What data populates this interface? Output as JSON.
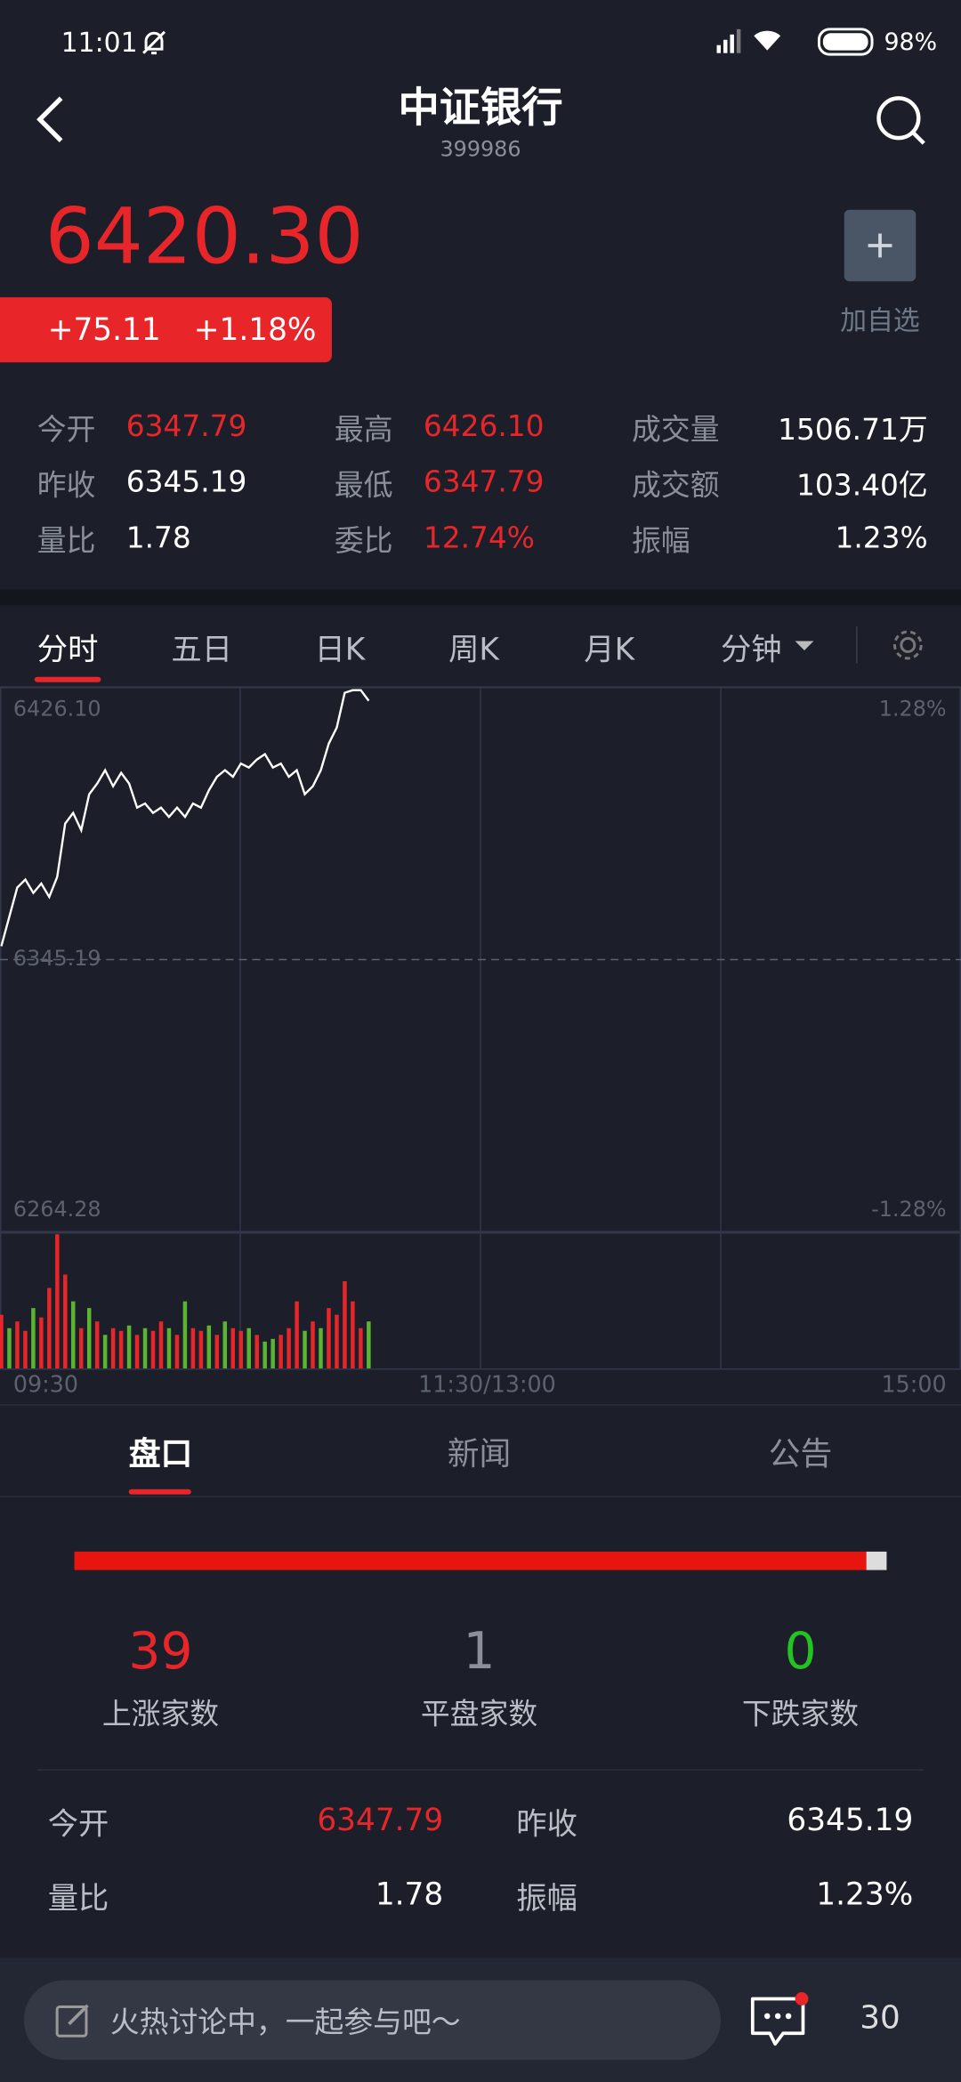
{
  "status_bar": {
    "time": "11:01",
    "battery": "98%"
  },
  "header": {
    "title": "中证银行",
    "code": "399986"
  },
  "quote": {
    "price": "6420.30",
    "change": "+75.11",
    "change_pct": "+1.18%",
    "watchlist": "加自选"
  },
  "stats": [
    [
      {
        "label": "今开",
        "value": "6347.79",
        "color": "#e8262a"
      },
      {
        "label": "最高",
        "value": "6426.10",
        "color": "#e8262a"
      },
      {
        "label": "成交量",
        "value": "1506.71万",
        "color": "#ffffff"
      }
    ],
    [
      {
        "label": "昨收",
        "value": "6345.19",
        "color": "#ffffff"
      },
      {
        "label": "最低",
        "value": "6347.79",
        "color": "#e8262a"
      },
      {
        "label": "成交额",
        "value": "103.40亿",
        "color": "#ffffff"
      }
    ],
    [
      {
        "label": "量比",
        "value": "1.78",
        "color": "#ffffff"
      },
      {
        "label": "委比",
        "value": "12.74%",
        "color": "#e8262a"
      },
      {
        "label": "振幅",
        "value": "1.23%",
        "color": "#ffffff"
      }
    ]
  ],
  "tabs": [
    "分时",
    "五日",
    "日K",
    "周K",
    "月K",
    "分钟"
  ],
  "chart_data": {
    "type": "line",
    "color": "#ffffff",
    "values": [
      6349.16,
      6357.88,
      6366.61,
      6368.99,
      6365.02,
      6367.8,
      6363.83,
      6369.78,
      6385.64,
      6388.82,
      6383.66,
      6394.37,
      6397.54,
      6401.51,
      6396.75,
      6400.71,
      6397.54,
      6390.4,
      6391.59,
      6388.82,
      6390.4,
      6387.63,
      6390.4,
      6387.63,
      6391.59,
      6390.4,
      6395.56,
      6399.52,
      6401.51,
      6399.52,
      6403.49,
      6402.3,
      6404.68,
      6406.27,
      6402.3,
      6403.49,
      6399.52,
      6401.51,
      6394.37,
      6396.75,
      6401.51,
      6409.44,
      6414.2,
      6424.51,
      6425.31,
      6425.31,
      6422.14,
      null,
      null,
      null,
      null,
      null,
      null,
      null,
      null,
      null,
      null,
      null,
      null,
      null,
      null,
      null,
      null,
      null,
      null,
      null,
      null,
      null,
      null,
      null,
      null,
      null,
      null,
      null,
      null,
      null,
      null,
      null,
      null,
      null,
      null,
      null,
      null,
      null,
      null,
      null,
      null,
      null,
      null,
      null,
      null,
      null,
      null,
      null,
      null,
      null,
      null,
      null,
      null,
      null,
      null,
      null,
      null,
      null,
      null,
      null,
      null,
      null,
      null,
      null,
      null,
      null,
      null,
      null,
      null,
      null,
      null,
      null,
      null,
      null,
      null
    ],
    "ylim": [
      6264.28,
      6426.1
    ],
    "yticks": [
      {
        "value": 6426.1,
        "label": "6426.10"
      },
      6345.19,
      6264.28
    ],
    "y2lim": [
      -1.28,
      1.28
    ],
    "y2ticks": [
      {
        "value": 1.28,
        "label": "1.28%"
      },
      {
        "value": -1.28,
        "label": "-1.28%"
      }
    ],
    "x_labels": [
      "09:30",
      "11:30/13:00",
      "15:00"
    ],
    "volume": {
      "values": [
        40,
        30,
        35,
        28,
        45,
        38,
        60,
        100,
        70,
        50,
        30,
        45,
        35,
        25,
        30,
        28,
        32,
        25,
        30,
        28,
        35,
        30,
        25,
        50,
        30,
        28,
        32,
        25,
        35,
        30,
        28,
        30,
        25,
        20,
        22,
        25,
        30,
        50,
        28,
        35,
        30,
        45,
        40,
        65,
        50,
        30,
        35
      ],
      "colors": [
        "#e8262a",
        "#5cb531",
        "#e8262a",
        "#e8262a",
        "#5cb531",
        "#e8262a",
        "#e8262a",
        "#e8262a",
        "#e8262a",
        "#5cb531",
        "#e8262a",
        "#5cb531",
        "#e8262a",
        "#5cb531",
        "#e8262a",
        "#e8262a",
        "#5cb531",
        "#e8262a",
        "#5cb531",
        "#e8262a",
        "#e8262a",
        "#5cb531",
        "#e8262a",
        "#5cb531",
        "#e8262a",
        "#e8262a",
        "#5cb531",
        "#e8262a",
        "#5cb531",
        "#e8262a",
        "#e8262a",
        "#5cb531",
        "#e8262a",
        "#5cb531",
        "#5cb531",
        "#e8262a",
        "#e8262a",
        "#e8262a",
        "#5cb531",
        "#e8262a",
        "#5cb531",
        "#e8262a",
        "#e8262a",
        "#e8262a",
        "#e8262a",
        "#e8262a",
        "#5cb531"
      ]
    }
  },
  "section_tabs": [
    "盘口",
    "新闻",
    "公告"
  ],
  "breadth": {
    "up": 39,
    "flat": 1,
    "down": 0,
    "up_label": "上涨家数",
    "flat_label": "平盘家数",
    "down_label": "下跌家数"
  },
  "details": [
    [
      {
        "label": "今开",
        "value": "6347.79",
        "color": "#e8262a"
      },
      {
        "label": "昨收",
        "value": "6345.19",
        "color": "#ffffff"
      }
    ],
    [
      {
        "label": "量比",
        "value": "1.78",
        "color": "#ffffff"
      },
      {
        "label": "振幅",
        "value": "1.23%",
        "color": "#ffffff"
      }
    ]
  ],
  "bottom_bar": {
    "placeholder": "火热讨论中，一起参与吧～",
    "comment_count": "30"
  }
}
